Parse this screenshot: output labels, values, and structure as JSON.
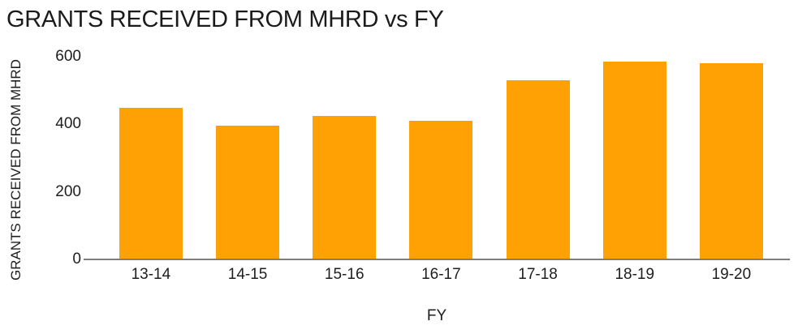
{
  "chart_data": {
    "type": "bar",
    "title": "GRANTS RECEIVED FROM MHRD vs FY",
    "xlabel": "FY",
    "ylabel": "GRANTS RECEIVED FROM MHRD",
    "categories": [
      "13-14",
      "14-15",
      "15-16",
      "16-17",
      "17-18",
      "18-19",
      "19-20"
    ],
    "values": [
      450,
      395,
      425,
      410,
      530,
      585,
      580
    ],
    "ylim": [
      0,
      600
    ],
    "yticks": [
      0,
      200,
      400,
      600
    ],
    "ytick_labels": [
      "0",
      "200",
      "400",
      "600"
    ],
    "grid": false,
    "legend_position": "none",
    "colors": {
      "bar": "#FFA005",
      "axis_line": "#7D7D7D",
      "text": "#1E1E1E",
      "background": "#FFFFFF"
    }
  }
}
